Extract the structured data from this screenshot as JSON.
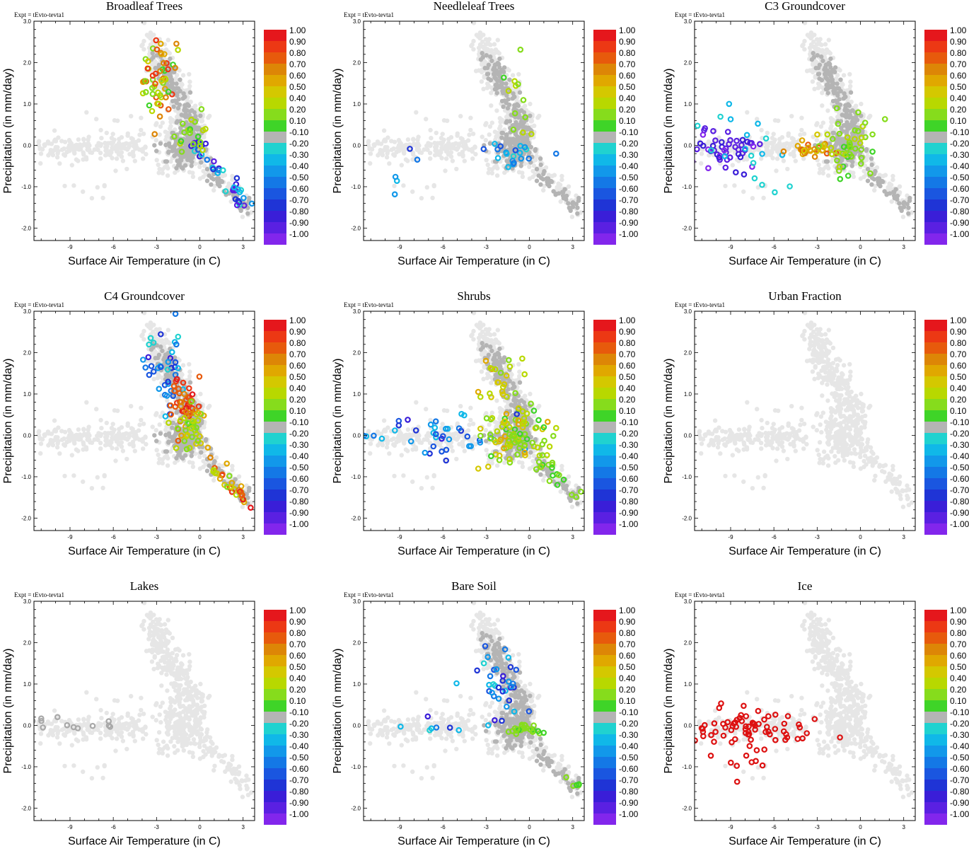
{
  "figure": {
    "expt_label": "Expt = tEvto-tevta1",
    "xlabel": "Surface Air Temperature (in C)",
    "ylabel": "Precipitation (in mm/day)",
    "xticks": [
      "-9",
      "-6",
      "-3",
      "0",
      "3"
    ],
    "yticks": [
      "3.0",
      "2.0",
      "1.0",
      "0.0",
      "-1.0",
      "-2.0"
    ],
    "xlim": [
      -11.5,
      3.8
    ],
    "ylim": [
      -2.3,
      3.0
    ]
  },
  "colorbar": {
    "labels": [
      "1.00",
      "0.90",
      "0.80",
      "0.70",
      "0.60",
      "0.50",
      "0.40",
      "0.20",
      "0.10",
      "-0.10",
      "-0.20",
      "-0.30",
      "-0.40",
      "-0.50",
      "-0.60",
      "-0.70",
      "-0.80",
      "-0.90",
      "-1.00"
    ],
    "colors": [
      "#e5171c",
      "#ec3814",
      "#e75a0c",
      "#dd8606",
      "#e0a800",
      "#d4c800",
      "#b8d800",
      "#86dc1c",
      "#3fd428",
      "#b4b4b4",
      "#20d2d0",
      "#10b8e8",
      "#1298ea",
      "#1478e6",
      "#1a56e0",
      "#1f34d6",
      "#3a1ed8",
      "#5a20e2",
      "#8226ec"
    ],
    "neutral_color": "#b4b4b4",
    "background_color": "#e6e6e6",
    "ice_color": "#dd1111"
  },
  "chart_data": [
    {
      "type": "scatter",
      "title": "Broadleaf Trees",
      "xlabel": "Surface Air Temperature (in C)",
      "ylabel": "Precipitation (in mm/day)",
      "xlim": [
        -11.5,
        3.8
      ],
      "ylim": [
        -2.3,
        3.0
      ],
      "color_range": [
        -1.0,
        1.0
      ],
      "groups": [
        {
          "name": "upper cluster",
          "cx": -2.8,
          "cy": 1.55,
          "sx": 0.65,
          "sy": 0.45,
          "n": 55,
          "vmin": 0.1,
          "vmax": 0.95
        },
        {
          "name": "diagonal tail",
          "x": [
            -0.5,
            3.6
          ],
          "y": [
            0.2,
            -1.65
          ],
          "n": 38,
          "spread": 0.12,
          "vmin": -1.0,
          "vmax": -0.2
        },
        {
          "name": "mid band",
          "cx": -0.6,
          "cy": 0.3,
          "sx": 0.5,
          "sy": 0.35,
          "n": 20,
          "vmin": 0.1,
          "vmax": 0.4
        }
      ]
    },
    {
      "type": "scatter",
      "title": "Needleleaf Trees",
      "xlabel": "Surface Air Temperature (in C)",
      "ylabel": "Precipitation (in mm/day)",
      "xlim": [
        -11.5,
        3.8
      ],
      "ylim": [
        -2.3,
        3.0
      ],
      "color_range": [
        -1.0,
        1.0
      ],
      "groups": [
        {
          "name": "sparse positive",
          "cx": -1.0,
          "cy": 0.9,
          "sx": 0.5,
          "sy": 0.6,
          "n": 12,
          "vmin": 0.1,
          "vmax": 0.4
        },
        {
          "name": "negative band",
          "cx": -1.0,
          "cy": -0.25,
          "sx": 1.0,
          "sy": 0.15,
          "n": 20,
          "vmin": -0.6,
          "vmax": -0.2
        },
        {
          "name": "left negatives",
          "cx": -8.8,
          "cy": -0.85,
          "sx": 0.6,
          "sy": 0.35,
          "n": 5,
          "vmin": -0.7,
          "vmax": -0.2
        }
      ]
    },
    {
      "type": "scatter",
      "title": "C3 Groundcover",
      "xlabel": "Surface Air Temperature (in C)",
      "ylabel": "Precipitation (in mm/day)",
      "xlim": [
        -11.5,
        3.8
      ],
      "ylim": [
        -2.3,
        3.0
      ],
      "color_range": [
        -1.0,
        1.0
      ],
      "groups": [
        {
          "name": "left purple",
          "cx": -9.5,
          "cy": -0.1,
          "sx": 1.3,
          "sy": 0.22,
          "n": 50,
          "vmin": -1.0,
          "vmax": -0.8
        },
        {
          "name": "left cyan",
          "cx": -7.5,
          "cy": 0.0,
          "sx": 1.5,
          "sy": 0.5,
          "n": 18,
          "vmin": -0.3,
          "vmax": -0.2
        },
        {
          "name": "mid orange",
          "cx": -3.5,
          "cy": -0.1,
          "sx": 0.8,
          "sy": 0.12,
          "n": 30,
          "vmin": 0.5,
          "vmax": 0.8
        },
        {
          "name": "right green",
          "cx": -0.8,
          "cy": -0.05,
          "sx": 0.9,
          "sy": 0.35,
          "n": 45,
          "vmin": 0.1,
          "vmax": 0.4
        }
      ]
    },
    {
      "type": "scatter",
      "title": "C4 Groundcover",
      "xlabel": "Surface Air Temperature (in C)",
      "ylabel": "Precipitation (in mm/day)",
      "xlim": [
        -11.5,
        3.8
      ],
      "ylim": [
        -2.3,
        3.0
      ],
      "color_range": [
        -1.0,
        1.0
      ],
      "groups": [
        {
          "name": "upper blues",
          "cx": -2.6,
          "cy": 1.65,
          "sx": 0.7,
          "sy": 0.5,
          "n": 38,
          "vmin": -0.8,
          "vmax": -0.2
        },
        {
          "name": "red core",
          "cx": -1.2,
          "cy": 0.8,
          "sx": 0.5,
          "sy": 0.3,
          "n": 40,
          "vmin": 0.7,
          "vmax": 1.0
        },
        {
          "name": "center mix",
          "cx": -0.8,
          "cy": 0.1,
          "sx": 0.6,
          "sy": 0.35,
          "n": 35,
          "vmin": 0.1,
          "vmax": 0.6
        },
        {
          "name": "diagonal tail",
          "x": [
            0.3,
            3.6
          ],
          "y": [
            -0.6,
            -1.65
          ],
          "n": 30,
          "spread": 0.12,
          "vmin": 0.2,
          "vmax": 1.0
        }
      ]
    },
    {
      "type": "scatter",
      "title": "Shrubs",
      "xlabel": "Surface Air Temperature (in C)",
      "ylabel": "Precipitation (in mm/day)",
      "xlim": [
        -11.5,
        3.8
      ],
      "ylim": [
        -2.3,
        3.0
      ],
      "color_range": [
        -1.0,
        1.0
      ],
      "groups": [
        {
          "name": "left band",
          "cx": -6.0,
          "cy": 0.0,
          "sx": 2.4,
          "sy": 0.28,
          "n": 40,
          "vmin": -0.8,
          "vmax": -0.2
        },
        {
          "name": "center dense",
          "cx": -1.0,
          "cy": -0.1,
          "sx": 1.2,
          "sy": 0.32,
          "n": 80,
          "vmin": 0.1,
          "vmax": 0.6
        },
        {
          "name": "upper mixed",
          "cx": -2.0,
          "cy": 1.2,
          "sx": 0.7,
          "sy": 0.55,
          "n": 30,
          "vmin": 0.2,
          "vmax": 0.6
        },
        {
          "name": "diagonal tail",
          "x": [
            0.5,
            3.6
          ],
          "y": [
            -0.5,
            -1.5
          ],
          "n": 18,
          "spread": 0.12,
          "vmin": 0.1,
          "vmax": 0.3
        }
      ]
    },
    {
      "type": "scatter",
      "title": "Urban Fraction",
      "xlabel": "Surface Air Temperature (in C)",
      "ylabel": "Precipitation (in mm/day)",
      "xlim": [
        -11.5,
        3.8
      ],
      "ylim": [
        -2.3,
        3.0
      ],
      "color_range": [
        -1.0,
        1.0
      ],
      "groups": []
    },
    {
      "type": "scatter",
      "title": "Lakes",
      "xlabel": "Surface Air Temperature (in C)",
      "ylabel": "Precipitation (in mm/day)",
      "xlim": [
        -11.5,
        3.8
      ],
      "ylim": [
        -2.3,
        3.0
      ],
      "color_range": [
        -1.0,
        1.0
      ],
      "groups": [
        {
          "name": "faint neutral",
          "cx": -8.0,
          "cy": 0.05,
          "sx": 2.0,
          "sy": 0.12,
          "n": 12,
          "vmin": -0.05,
          "vmax": 0.05
        }
      ]
    },
    {
      "type": "scatter",
      "title": "Bare Soil",
      "xlabel": "Surface Air Temperature (in C)",
      "ylabel": "Precipitation (in mm/day)",
      "xlim": [
        -11.5,
        3.8
      ],
      "ylim": [
        -2.3,
        3.0
      ],
      "color_range": [
        -1.0,
        1.0
      ],
      "groups": [
        {
          "name": "upper blues",
          "cx": -2.2,
          "cy": 1.1,
          "sx": 0.8,
          "sy": 0.45,
          "n": 35,
          "vmin": -0.8,
          "vmax": -0.2
        },
        {
          "name": "center green",
          "cx": -0.3,
          "cy": -0.05,
          "sx": 0.7,
          "sy": 0.1,
          "n": 25,
          "vmin": 0.1,
          "vmax": 0.3
        },
        {
          "name": "left sparse",
          "cx": -6.5,
          "cy": -0.1,
          "sx": 2.0,
          "sy": 0.12,
          "n": 8,
          "vmin": -0.9,
          "vmax": -0.2
        },
        {
          "name": "tail green",
          "x": [
            2.5,
            3.6
          ],
          "y": [
            -1.3,
            -1.6
          ],
          "n": 5,
          "spread": 0.08,
          "vmin": 0.1,
          "vmax": 0.2
        }
      ]
    },
    {
      "type": "scatter",
      "title": "Ice",
      "xlabel": "Surface Air Temperature (in C)",
      "ylabel": "Precipitation (in mm/day)",
      "xlim": [
        -11.5,
        3.8
      ],
      "ylim": [
        -2.3,
        3.0
      ],
      "color_range": [
        -1.0,
        1.0
      ],
      "groups": [
        {
          "name": "ice points",
          "cx": -7.8,
          "cy": -0.05,
          "sx": 2.3,
          "sy": 0.3,
          "n": 75,
          "vmin": 1.0,
          "vmax": 1.0
        },
        {
          "name": "ice outliers",
          "cx": -8.5,
          "cy": -0.9,
          "sx": 1.2,
          "sy": 0.4,
          "n": 6,
          "vmin": 1.0,
          "vmax": 1.0
        }
      ]
    }
  ]
}
